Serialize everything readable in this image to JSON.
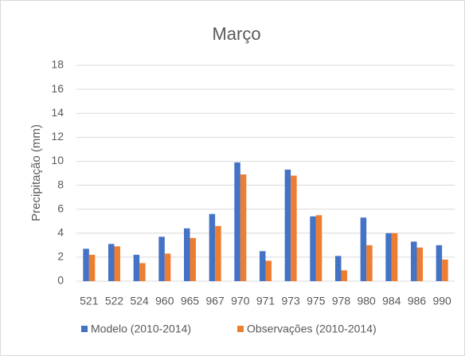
{
  "chart_data": {
    "type": "bar",
    "title": "Março",
    "y_label": "Precipitação (mm)",
    "categories": [
      "521",
      "522",
      "524",
      "960",
      "965",
      "967",
      "970",
      "971",
      "973",
      "975",
      "978",
      "980",
      "984",
      "986",
      "990"
    ],
    "series": [
      {
        "name": "Modelo (2010-2014)",
        "color": "#4472c4",
        "values": [
          2.7,
          3.1,
          2.2,
          3.7,
          4.4,
          5.6,
          9.9,
          2.5,
          9.3,
          5.4,
          2.1,
          5.3,
          4.0,
          3.3,
          3.0
        ]
      },
      {
        "name": "Observações (2010-2014)",
        "color": "#ed7d31",
        "values": [
          2.2,
          2.9,
          1.5,
          2.3,
          3.6,
          4.6,
          8.9,
          1.7,
          8.8,
          5.5,
          0.9,
          3.0,
          4.0,
          2.8,
          1.8
        ]
      }
    ],
    "ylim": [
      0,
      18
    ],
    "yticks": [
      0,
      2,
      4,
      6,
      8,
      10,
      12,
      14,
      16,
      18
    ],
    "grid": true,
    "legend": "bottom"
  }
}
